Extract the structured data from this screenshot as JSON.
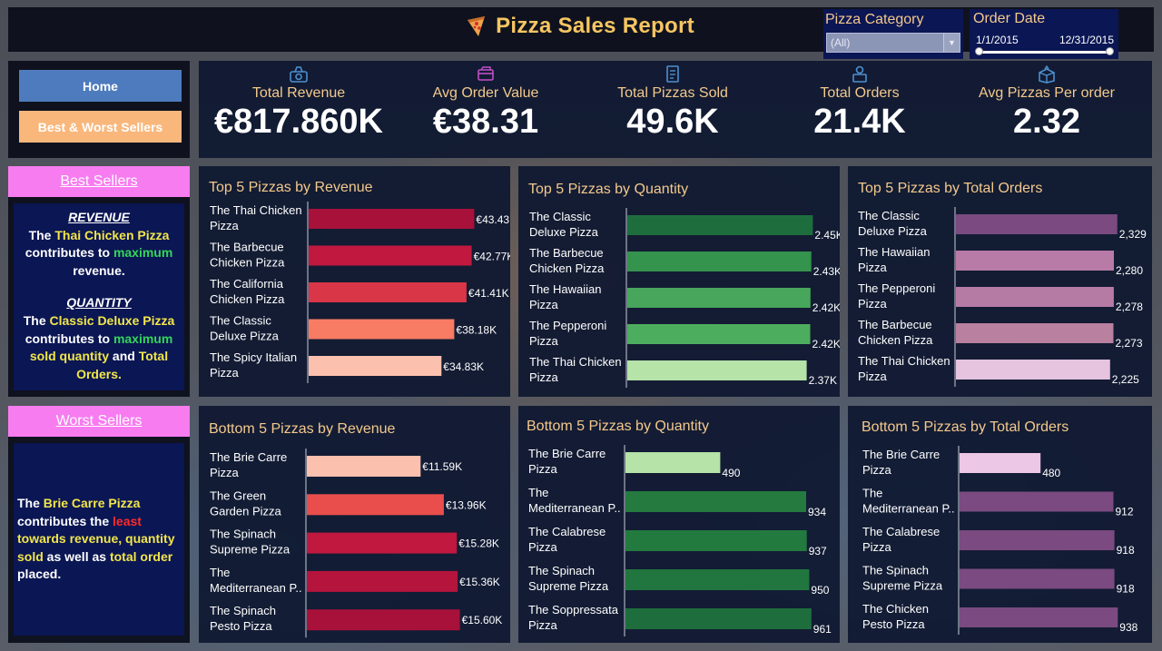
{
  "header": {
    "title": "Pizza Sales Report",
    "category_label": "Pizza Category",
    "category_value": "(All)",
    "date_label": "Order Date",
    "date_start": "1/1/2015",
    "date_end": "12/31/2015"
  },
  "nav": {
    "home": "Home",
    "best_worst": "Best & Worst Sellers"
  },
  "kpis": [
    {
      "label": "Total Revenue",
      "value": "€817.860K",
      "icon": "money-bag-icon"
    },
    {
      "label": "Avg Order Value",
      "value": "€38.31",
      "icon": "card-icon"
    },
    {
      "label": "Total Pizzas Sold",
      "value": "49.6K",
      "icon": "receipt-icon"
    },
    {
      "label": "Total Orders",
      "value": "21.4K",
      "icon": "delivery-icon"
    },
    {
      "label": "Avg Pizzas Per order",
      "value": "2.32",
      "icon": "box-icon"
    }
  ],
  "best": {
    "title": "Best Sellers",
    "revenue_head": "REVENUE",
    "t1": "The ",
    "t1_pizza": "Thai Chicken Pizza",
    "t1b": " contributes to ",
    "t1_max": "maximum",
    "t1c": " revenue.",
    "quantity_head": "QUANTITY",
    "t2": "The ",
    "t2_pizza": "Classic Deluxe Pizza",
    "t2b": " contributes to ",
    "t2_max": "maximum",
    "t2c": " ",
    "t2_sold": "sold quantity",
    "t2d": " and ",
    "t2_orders": "Total Orders.",
    "t2e": ""
  },
  "worst": {
    "title": "Worst Sellers",
    "t1": "The ",
    "t1_pizza": "Brie Carre Pizza",
    "t1b": " contributes the ",
    "t1_least": "least",
    "t1c": " ",
    "t1_rev": "towards revenue,",
    "t1d": " ",
    "t1_qty": "quantity sold",
    "t1e": " as well as ",
    "t1_orders": "total order",
    "t1f": " placed."
  },
  "chart_data": [
    {
      "type": "bar",
      "title": "Top 5 Pizzas by Revenue",
      "categories": [
        [
          "The Thai Chicken",
          "Pizza"
        ],
        [
          "The Barbecue",
          "Chicken Pizza"
        ],
        [
          "The California",
          "Chicken Pizza"
        ],
        [
          "The Classic",
          "Deluxe Pizza"
        ],
        [
          "The Spicy Italian",
          "Pizza"
        ]
      ],
      "values": [
        43.43,
        42.77,
        41.41,
        38.18,
        34.83
      ],
      "labels": [
        "€43.43K",
        "€42.77K",
        "€41.41K",
        "€38.18K",
        "€34.83K"
      ],
      "colors": [
        "#a8113a",
        "#c0183f",
        "#d93647",
        "#f87b63",
        "#fcc0ae"
      ],
      "xlim": [
        0,
        50
      ]
    },
    {
      "type": "bar",
      "title": "Top 5 Pizzas by Quantity",
      "categories": [
        [
          "The Classic",
          "Deluxe Pizza"
        ],
        [
          "The Barbecue",
          "Chicken Pizza"
        ],
        [
          "The Hawaiian",
          "Pizza"
        ],
        [
          "The Pepperoni",
          "Pizza"
        ],
        [
          "The Thai Chicken",
          "Pizza"
        ]
      ],
      "values": [
        2453,
        2432,
        2422,
        2418,
        2371
      ],
      "labels": [
        "2.45K",
        "2.43K",
        "2.42K",
        "2.42K",
        "2.37K"
      ],
      "colors": [
        "#1e6e3d",
        "#34934c",
        "#47a65b",
        "#4dad5e",
        "#b5e3a8"
      ],
      "xlim": [
        0,
        2760
      ]
    },
    {
      "type": "bar",
      "title": "Top 5 Pizzas by Total Orders",
      "categories": [
        [
          "The Classic",
          "Deluxe Pizza"
        ],
        [
          "The Hawaiian",
          "Pizza"
        ],
        [
          "The Pepperoni",
          "Pizza"
        ],
        [
          "The Barbecue",
          "Chicken Pizza"
        ],
        [
          "The Thai Chicken",
          "Pizza"
        ]
      ],
      "values": [
        2329,
        2280,
        2278,
        2273,
        2225
      ],
      "labels": [
        "2,329",
        "2,280",
        "2,278",
        "2,273",
        "2,225"
      ],
      "colors": [
        "#7a4a80",
        "#b87aa6",
        "#b67ba5",
        "#b9809f",
        "#e6c3df"
      ],
      "xlim": [
        0,
        2620
      ]
    },
    {
      "type": "bar",
      "title": "Bottom 5 Pizzas by Revenue",
      "categories": [
        [
          "The Brie Carre",
          "Pizza"
        ],
        [
          "The Green",
          "Garden Pizza"
        ],
        [
          "The Spinach",
          "Supreme Pizza"
        ],
        [
          "The",
          "Mediterranean P.."
        ],
        [
          "The Spinach",
          "Pesto Pizza"
        ]
      ],
      "values": [
        11.59,
        13.96,
        15.28,
        15.36,
        15.6
      ],
      "labels": [
        "€11.59K",
        "€13.96K",
        "€15.28K",
        "€15.36K",
        "€15.60K"
      ],
      "colors": [
        "#fcc0ae",
        "#ea4e4c",
        "#c0183f",
        "#b5143d",
        "#a8113a"
      ],
      "xlim": [
        0,
        18.5
      ]
    },
    {
      "type": "bar",
      "title": "Bottom 5 Pizzas by Quantity",
      "categories": [
        [
          "The Brie Carre",
          "Pizza"
        ],
        [
          "The",
          "Mediterranean P.."
        ],
        [
          "The Calabrese",
          "Pizza"
        ],
        [
          "The Spinach",
          "Supreme Pizza"
        ],
        [
          "The Soppressata",
          "Pizza"
        ]
      ],
      "values": [
        490,
        934,
        937,
        950,
        961
      ],
      "labels": [
        "490",
        "934",
        "937",
        "950",
        "961"
      ],
      "colors": [
        "#b5e3a8",
        "#247a3f",
        "#227a3e",
        "#217640",
        "#1e6e3d"
      ],
      "xlim": [
        0,
        1070
      ]
    },
    {
      "type": "bar",
      "title": "Bottom 5 Pizzas by Total Orders",
      "categories": [
        [
          "The Brie Carre",
          "Pizza"
        ],
        [
          "The",
          "Mediterranean P.."
        ],
        [
          "The Calabrese",
          "Pizza"
        ],
        [
          "The Spinach",
          "Supreme Pizza"
        ],
        [
          "The Chicken",
          "Pesto Pizza"
        ]
      ],
      "values": [
        480,
        912,
        918,
        918,
        938
      ],
      "labels": [
        "480",
        "912",
        "918",
        "918",
        "938"
      ],
      "colors": [
        "#ecc8e6",
        "#7b4a80",
        "#7b4a80",
        "#7b4a80",
        "#7a4a80"
      ],
      "xlim": [
        0,
        1060
      ]
    }
  ]
}
